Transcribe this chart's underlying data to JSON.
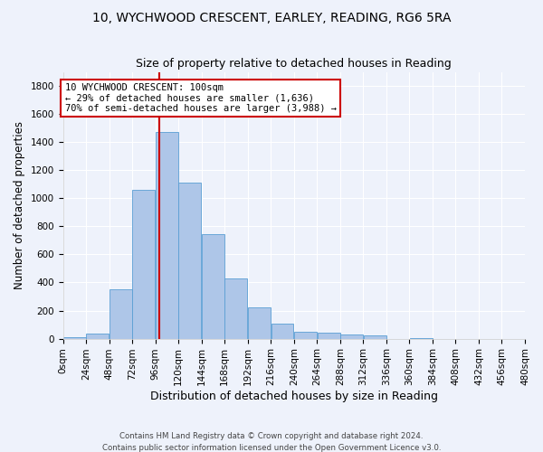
{
  "title_line1": "10, WYCHWOOD CRESCENT, EARLEY, READING, RG6 5RA",
  "title_line2": "Size of property relative to detached houses in Reading",
  "xlabel": "Distribution of detached houses by size in Reading",
  "ylabel": "Number of detached properties",
  "footer_line1": "Contains HM Land Registry data © Crown copyright and database right 2024.",
  "footer_line2": "Contains public sector information licensed under the Open Government Licence v3.0.",
  "bin_edges": [
    0,
    24,
    48,
    72,
    96,
    120,
    144,
    168,
    192,
    216,
    240,
    264,
    288,
    312,
    336,
    360,
    384,
    408,
    432,
    456,
    480
  ],
  "bar_values": [
    10,
    35,
    350,
    1060,
    1470,
    1110,
    745,
    430,
    225,
    110,
    50,
    45,
    30,
    20,
    0,
    5,
    0,
    0,
    0,
    0
  ],
  "bar_color": "#aec6e8",
  "bar_edgecolor": "#5a9fd4",
  "vline_x": 100,
  "vline_color": "#cc0000",
  "annotation_text": "10 WYCHWOOD CRESCENT: 100sqm\n← 29% of detached houses are smaller (1,636)\n70% of semi-detached houses are larger (3,988) →",
  "annotation_box_color": "#ffffff",
  "annotation_box_edgecolor": "#cc0000",
  "ylim": [
    0,
    1900
  ],
  "yticks": [
    0,
    200,
    400,
    600,
    800,
    1000,
    1200,
    1400,
    1600,
    1800
  ],
  "bg_color": "#eef2fb",
  "grid_color": "#ffffff",
  "title_fontsize": 10,
  "subtitle_fontsize": 9,
  "axis_label_fontsize": 8.5,
  "tick_fontsize": 7.5,
  "annotation_fontsize": 7.5
}
